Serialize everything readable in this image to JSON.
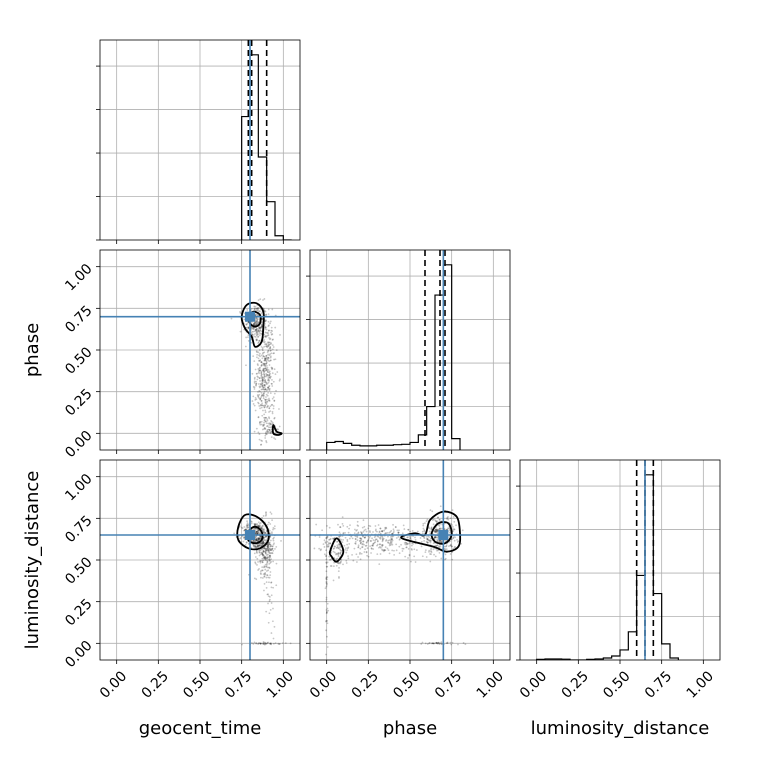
{
  "colors": {
    "truth": "#4682b4",
    "hist": "#000000",
    "grid": "#b0b0b0",
    "samples": "#000000"
  },
  "chart_data": {
    "type": "corner",
    "parameters": [
      "geocent_time",
      "phase",
      "luminosity_distance"
    ],
    "axis_range": [
      -0.1,
      1.1
    ],
    "tick_labels": [
      "0.00",
      "0.25",
      "0.50",
      "0.75",
      "1.00"
    ],
    "grid": true,
    "truths": {
      "geocent_time": 0.8,
      "phase": 0.7,
      "luminosity_distance": 0.65
    },
    "quantiles": {
      "geocent_time": [
        0.79,
        0.81,
        0.9
      ],
      "phase": [
        0.59,
        0.68,
        0.71
      ],
      "luminosity_distance": [
        0.6,
        0.65,
        0.7
      ]
    },
    "histograms": {
      "geocent_time": {
        "edges": [
          0.75,
          0.8,
          0.85,
          0.9,
          0.95,
          1.0,
          1.05
        ],
        "counts": [
          0.58,
          0.87,
          0.39,
          0.18,
          0.02,
          0.0
        ]
      },
      "phase": {
        "edges": [
          0.0,
          0.05,
          0.1,
          0.15,
          0.2,
          0.25,
          0.3,
          0.35,
          0.4,
          0.45,
          0.5,
          0.55,
          0.6,
          0.65,
          0.7,
          0.75,
          0.8
        ],
        "counts": [
          0.04,
          0.045,
          0.035,
          0.025,
          0.022,
          0.022,
          0.025,
          0.025,
          0.028,
          0.03,
          0.04,
          0.08,
          0.23,
          0.82,
          0.98,
          0.06
        ]
      },
      "luminosity_distance": {
        "edges": [
          0.0,
          0.05,
          0.1,
          0.15,
          0.2,
          0.25,
          0.3,
          0.35,
          0.4,
          0.45,
          0.5,
          0.55,
          0.6,
          0.65,
          0.7,
          0.75,
          0.8,
          0.85
        ],
        "counts": [
          0.003,
          0.005,
          0.005,
          0.004,
          0.0,
          0.0,
          0.003,
          0.005,
          0.01,
          0.02,
          0.05,
          0.14,
          0.42,
          0.92,
          0.33,
          0.08,
          0.01
        ]
      }
    },
    "clusters": {
      "phase_vs_geocent_time": [
        {
          "cx": 0.83,
          "cy": 0.66,
          "sx": 0.035,
          "sy": 0.06,
          "n": 260
        },
        {
          "cx": 0.89,
          "cy": 0.35,
          "sx": 0.03,
          "sy": 0.18,
          "n": 480
        },
        {
          "cx": 0.92,
          "cy": 0.02,
          "sx": 0.03,
          "sy": 0.03,
          "n": 60
        }
      ],
      "luminosity_distance_vs_geocent_time": [
        {
          "cx": 0.83,
          "cy": 0.65,
          "sx": 0.04,
          "sy": 0.04,
          "n": 340
        },
        {
          "cx": 0.89,
          "cy": 0.58,
          "sx": 0.03,
          "sy": 0.08,
          "n": 320
        },
        {
          "cx": 0.92,
          "cy": 0.3,
          "sx": 0.015,
          "sy": 0.18,
          "n": 40
        },
        {
          "cx": 0.9,
          "cy": 0.0,
          "sx": 0.05,
          "sy": 0.004,
          "n": 40
        }
      ],
      "luminosity_distance_vs_phase": [
        {
          "cx": 0.68,
          "cy": 0.65,
          "sx": 0.05,
          "sy": 0.06,
          "n": 320
        },
        {
          "cx": 0.3,
          "cy": 0.62,
          "sx": 0.18,
          "sy": 0.05,
          "n": 420
        },
        {
          "cx": 0.06,
          "cy": 0.53,
          "sx": 0.03,
          "sy": 0.06,
          "n": 90
        },
        {
          "cx": 0.0,
          "cy": 0.3,
          "sx": 0.006,
          "sy": 0.2,
          "n": 40
        },
        {
          "cx": 0.68,
          "cy": 0.0,
          "sx": 0.06,
          "sy": 0.004,
          "n": 35
        }
      ]
    },
    "contours": {
      "phase_vs_geocent_time": [
        [
          [
            0.75,
            0.7
          ],
          [
            0.78,
            0.77
          ],
          [
            0.84,
            0.78
          ],
          [
            0.88,
            0.73
          ],
          [
            0.88,
            0.64
          ],
          [
            0.87,
            0.55
          ],
          [
            0.83,
            0.52
          ],
          [
            0.81,
            0.58
          ],
          [
            0.77,
            0.63
          ]
        ],
        [
          [
            0.79,
            0.7
          ],
          [
            0.82,
            0.73
          ],
          [
            0.86,
            0.71
          ],
          [
            0.86,
            0.66
          ],
          [
            0.83,
            0.64
          ],
          [
            0.8,
            0.66
          ]
        ],
        [
          [
            0.94,
            0.05
          ],
          [
            0.96,
            0.01
          ],
          [
            0.99,
            0.0
          ],
          [
            0.97,
            -0.01
          ],
          [
            0.94,
            0.0
          ]
        ]
      ],
      "luminosity_distance_vs_geocent_time": [
        [
          [
            0.73,
            0.7
          ],
          [
            0.77,
            0.77
          ],
          [
            0.84,
            0.76
          ],
          [
            0.9,
            0.7
          ],
          [
            0.91,
            0.62
          ],
          [
            0.86,
            0.57
          ],
          [
            0.79,
            0.57
          ],
          [
            0.73,
            0.62
          ]
        ],
        [
          [
            0.79,
            0.67
          ],
          [
            0.83,
            0.7
          ],
          [
            0.87,
            0.67
          ],
          [
            0.87,
            0.62
          ],
          [
            0.83,
            0.6
          ],
          [
            0.79,
            0.62
          ]
        ]
      ],
      "luminosity_distance_vs_phase": [
        [
          [
            0.59,
            0.65
          ],
          [
            0.62,
            0.74
          ],
          [
            0.7,
            0.79
          ],
          [
            0.78,
            0.76
          ],
          [
            0.8,
            0.66
          ],
          [
            0.79,
            0.58
          ],
          [
            0.72,
            0.55
          ],
          [
            0.64,
            0.58
          ],
          [
            0.48,
            0.62
          ],
          [
            0.45,
            0.64
          ],
          [
            0.53,
            0.66
          ]
        ],
        [
          [
            0.63,
            0.66
          ],
          [
            0.67,
            0.72
          ],
          [
            0.73,
            0.72
          ],
          [
            0.75,
            0.65
          ],
          [
            0.71,
            0.6
          ],
          [
            0.65,
            0.61
          ]
        ],
        [
          [
            0.02,
            0.55
          ],
          [
            0.06,
            0.63
          ],
          [
            0.1,
            0.55
          ],
          [
            0.06,
            0.49
          ],
          [
            0.03,
            0.52
          ]
        ]
      ]
    }
  }
}
